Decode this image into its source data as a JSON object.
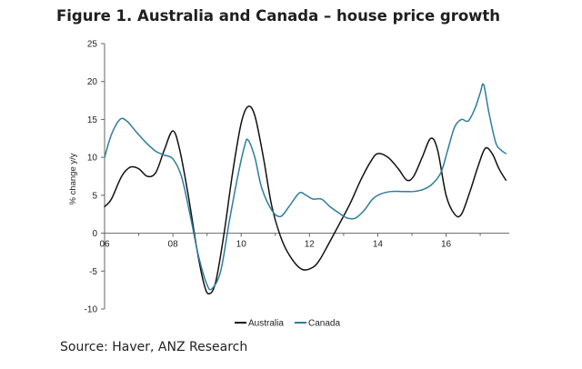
{
  "chart_data": {
    "type": "line",
    "title": "Figure 1. Australia and Canada – house price growth",
    "ylabel": "% change y/y",
    "xlabel": "",
    "ylim": [
      -10,
      25
    ],
    "xlim": [
      2006,
      2017.85
    ],
    "y_ticks": [
      -10,
      -5,
      0,
      5,
      10,
      15,
      20,
      25
    ],
    "y_tick_labels": [
      "-10",
      "-5",
      "0",
      "5",
      "10",
      "15",
      "20",
      "25"
    ],
    "x_ticks": [
      2006,
      2008,
      2010,
      2012,
      2014,
      2016
    ],
    "x_tick_labels": [
      "06",
      "08",
      "10",
      "12",
      "14",
      "16"
    ],
    "grid": false,
    "legend_position": "bottom",
    "series": [
      {
        "name": "Australia",
        "color": "#111111",
        "points": [
          [
            2006.0,
            3.5
          ],
          [
            2006.2,
            4.5
          ],
          [
            2006.5,
            7.5
          ],
          [
            2006.75,
            8.7
          ],
          [
            2007.0,
            8.5
          ],
          [
            2007.25,
            7.5
          ],
          [
            2007.5,
            8.0
          ],
          [
            2007.75,
            11.0
          ],
          [
            2008.0,
            13.5
          ],
          [
            2008.2,
            11.0
          ],
          [
            2008.45,
            5.0
          ],
          [
            2008.7,
            -2.0
          ],
          [
            2008.9,
            -6.5
          ],
          [
            2009.05,
            -8.0
          ],
          [
            2009.25,
            -6.5
          ],
          [
            2009.5,
            0.0
          ],
          [
            2009.75,
            8.0
          ],
          [
            2010.0,
            14.5
          ],
          [
            2010.2,
            16.7
          ],
          [
            2010.4,
            15.5
          ],
          [
            2010.65,
            10.0
          ],
          [
            2010.9,
            3.5
          ],
          [
            2011.2,
            -1.0
          ],
          [
            2011.5,
            -3.5
          ],
          [
            2011.8,
            -4.8
          ],
          [
            2012.1,
            -4.5
          ],
          [
            2012.3,
            -3.5
          ],
          [
            2012.55,
            -1.5
          ],
          [
            2012.85,
            1.0
          ],
          [
            2013.2,
            4.0
          ],
          [
            2013.5,
            7.0
          ],
          [
            2013.8,
            9.5
          ],
          [
            2014.0,
            10.5
          ],
          [
            2014.3,
            10.0
          ],
          [
            2014.6,
            8.5
          ],
          [
            2014.85,
            7.0
          ],
          [
            2015.05,
            7.5
          ],
          [
            2015.3,
            10.0
          ],
          [
            2015.55,
            12.5
          ],
          [
            2015.75,
            11.0
          ],
          [
            2016.0,
            5.0
          ],
          [
            2016.25,
            2.5
          ],
          [
            2016.45,
            2.5
          ],
          [
            2016.7,
            5.5
          ],
          [
            2016.95,
            9.0
          ],
          [
            2017.15,
            11.2
          ],
          [
            2017.35,
            10.5
          ],
          [
            2017.55,
            8.5
          ],
          [
            2017.75,
            7.0
          ]
        ]
      },
      {
        "name": "Canada",
        "color": "#2e7e9b",
        "points": [
          [
            2006.0,
            10.0
          ],
          [
            2006.2,
            13.0
          ],
          [
            2006.45,
            15.0
          ],
          [
            2006.65,
            14.8
          ],
          [
            2006.9,
            13.5
          ],
          [
            2007.2,
            12.0
          ],
          [
            2007.5,
            10.8
          ],
          [
            2007.75,
            10.3
          ],
          [
            2008.0,
            9.8
          ],
          [
            2008.25,
            7.5
          ],
          [
            2008.5,
            2.5
          ],
          [
            2008.75,
            -3.0
          ],
          [
            2009.0,
            -6.8
          ],
          [
            2009.15,
            -7.3
          ],
          [
            2009.4,
            -5.0
          ],
          [
            2009.65,
            1.5
          ],
          [
            2009.9,
            7.5
          ],
          [
            2010.1,
            11.5
          ],
          [
            2010.2,
            12.3
          ],
          [
            2010.4,
            10.0
          ],
          [
            2010.6,
            6.0
          ],
          [
            2010.9,
            3.0
          ],
          [
            2011.15,
            2.2
          ],
          [
            2011.4,
            3.5
          ],
          [
            2011.7,
            5.3
          ],
          [
            2011.9,
            5.0
          ],
          [
            2012.1,
            4.5
          ],
          [
            2012.35,
            4.5
          ],
          [
            2012.6,
            3.5
          ],
          [
            2012.85,
            2.7
          ],
          [
            2013.1,
            2.0
          ],
          [
            2013.35,
            2.0
          ],
          [
            2013.6,
            3.0
          ],
          [
            2013.85,
            4.5
          ],
          [
            2014.1,
            5.2
          ],
          [
            2014.4,
            5.5
          ],
          [
            2014.75,
            5.5
          ],
          [
            2015.05,
            5.5
          ],
          [
            2015.35,
            5.8
          ],
          [
            2015.6,
            6.5
          ],
          [
            2015.85,
            8.0
          ],
          [
            2016.05,
            11.0
          ],
          [
            2016.25,
            14.0
          ],
          [
            2016.45,
            15.0
          ],
          [
            2016.65,
            14.8
          ],
          [
            2016.85,
            16.5
          ],
          [
            2017.0,
            18.5
          ],
          [
            2017.1,
            19.6
          ],
          [
            2017.25,
            16.0
          ],
          [
            2017.45,
            12.0
          ],
          [
            2017.6,
            11.0
          ],
          [
            2017.75,
            10.5
          ]
        ]
      }
    ]
  },
  "source": "Source: Haver, ANZ Research"
}
